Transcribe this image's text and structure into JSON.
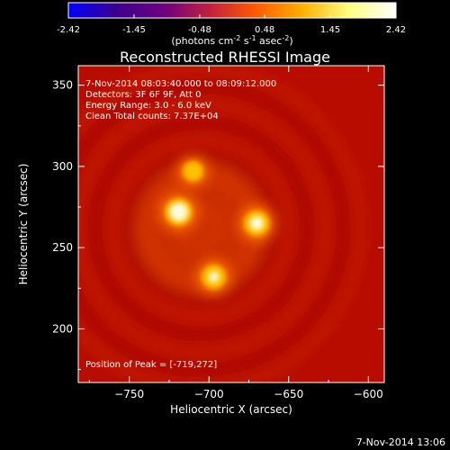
{
  "colorbar": {
    "ticks": [
      "-2.42",
      "-1.45",
      "-0.48",
      "0.48",
      "1.45",
      "2.42"
    ],
    "units_prefix": "(photons cm",
    "units_exp1": "-2",
    "units_mid": " s",
    "units_exp2": "-1",
    "units_mid2": " asec",
    "units_exp3": "-2",
    "units_suffix": ")",
    "range": [
      -2.42,
      2.42
    ]
  },
  "plot": {
    "title": "Reconstructed RHESSI Image",
    "info_lines": [
      " 7-Nov-2014 08:03:40.000 to 08:09:12.000",
      "Detectors: 3F 6F 9F, Att 0",
      "Energy Range: 3.0 - 6.0 keV",
      "Clean    Total counts: 7.37E+04"
    ],
    "peak_label": "Position of Peak = [-719,272]",
    "timestamp": "7-Nov-2014 13:06"
  },
  "chart_data": {
    "type": "heatmap",
    "title": "Reconstructed RHESSI Image",
    "xlabel": "Heliocentric X (arcsec)",
    "ylabel": "Heliocentric Y (arcsec)",
    "xlim": [
      -782,
      -590
    ],
    "ylim": [
      167,
      362
    ],
    "x_ticks": [
      -750,
      -700,
      -650,
      -600
    ],
    "y_ticks": [
      200,
      250,
      300,
      350
    ],
    "x_tick_labels": [
      "−750",
      "−700",
      "−650",
      "−600"
    ],
    "y_tick_labels": [
      "200",
      "250",
      "300",
      "350"
    ],
    "peak": [
      -719,
      272
    ],
    "sources": [
      {
        "x": -719,
        "y": 272,
        "relative_intensity": 1.0
      },
      {
        "x": -670,
        "y": 265,
        "relative_intensity": 0.85
      },
      {
        "x": -697,
        "y": 232,
        "relative_intensity": 0.75
      },
      {
        "x": -710,
        "y": 297,
        "relative_intensity": 0.45
      }
    ],
    "colormap": [
      "#0000ff",
      "#3a0090",
      "#6a0080",
      "#c02040",
      "#ff5a00",
      "#ffb000",
      "#ffff80",
      "#ffffff"
    ]
  }
}
